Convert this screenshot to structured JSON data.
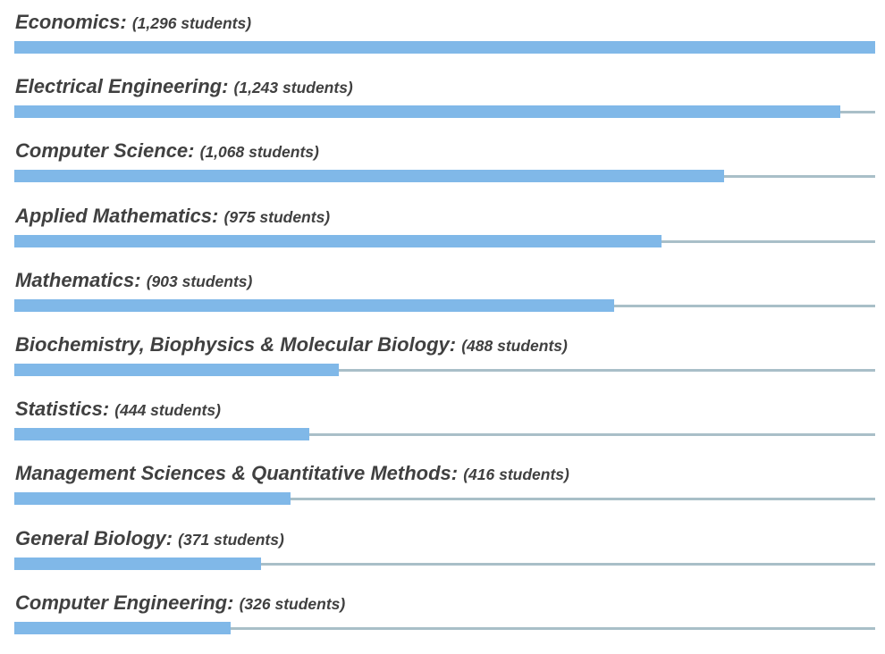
{
  "chart_data": {
    "type": "bar",
    "orientation": "horizontal",
    "max_value": 1296,
    "bar_color": "#80b8e8",
    "track_color": "#a9bfc8",
    "label_color": "#404040",
    "unit_suffix": "students",
    "categories": [
      "Economics",
      "Electrical Engineering",
      "Computer Science",
      "Applied Mathematics",
      "Mathematics",
      "Biochemistry, Biophysics & Molecular Biology",
      "Statistics",
      "Management Sciences & Quantitative Methods",
      "General Biology",
      "Computer Engineering"
    ],
    "values": [
      1296,
      1243,
      1068,
      975,
      903,
      488,
      444,
      416,
      371,
      326
    ],
    "rows": [
      {
        "name": "Economics:",
        "count": "(1,296 students)",
        "value": 1296
      },
      {
        "name": "Electrical Engineering:",
        "count": "(1,243 students)",
        "value": 1243
      },
      {
        "name": "Computer Science:",
        "count": "(1,068 students)",
        "value": 1068
      },
      {
        "name": "Applied Mathematics:",
        "count": "(975 students)",
        "value": 975
      },
      {
        "name": "Mathematics:",
        "count": "(903 students)",
        "value": 903
      },
      {
        "name": "Biochemistry, Biophysics & Molecular Biology:",
        "count": "(488 students)",
        "value": 488
      },
      {
        "name": "Statistics:",
        "count": "(444 students)",
        "value": 444
      },
      {
        "name": "Management Sciences & Quantitative Methods:",
        "count": "(416 students)",
        "value": 416
      },
      {
        "name": "General Biology:",
        "count": "(371 students)",
        "value": 371
      },
      {
        "name": "Computer Engineering:",
        "count": "(326 students)",
        "value": 326
      }
    ]
  }
}
